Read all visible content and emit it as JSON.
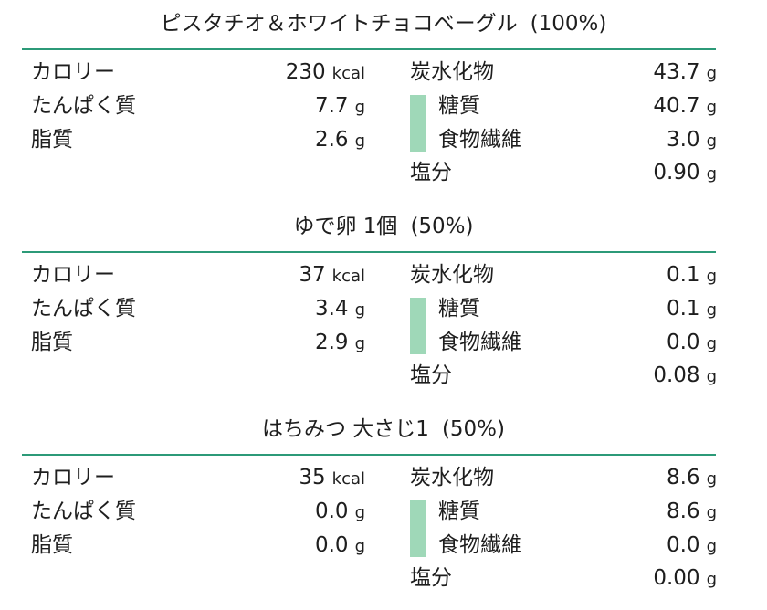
{
  "items": [
    {
      "name": "ピスタチオ＆ホワイトチョコベーグル",
      "portion": "(100%)",
      "calories": "230",
      "calories_unit": "kcal",
      "protein": "7.7",
      "fat": "2.6",
      "carbs": "43.7",
      "sugar": "40.7",
      "fiber": "3.0",
      "salt": "0.90"
    },
    {
      "name": "ゆで卵 1個",
      "portion": "(50%)",
      "calories": "37",
      "calories_unit": "kcal",
      "protein": "3.4",
      "fat": "2.9",
      "carbs": "0.1",
      "sugar": "0.1",
      "fiber": "0.0",
      "salt": "0.08"
    },
    {
      "name": "はちみつ 大さじ1",
      "portion": "(50%)",
      "calories": "35",
      "calories_unit": "kcal",
      "protein": "0.0",
      "fat": "0.0",
      "carbs": "8.6",
      "sugar": "8.6",
      "fiber": "0.0",
      "salt": "0.00"
    }
  ],
  "labels": {
    "calories": "カロリー",
    "protein": "たんぱく質",
    "fat": "脂質",
    "carbs": "炭水化物",
    "sugar": "糖質",
    "fiber": "食物繊維",
    "salt": "塩分",
    "gram_unit": "g"
  },
  "colors": {
    "rule": "#2c9a78",
    "sub_bar": "#9fd8b8",
    "text": "#1e1e1e"
  }
}
